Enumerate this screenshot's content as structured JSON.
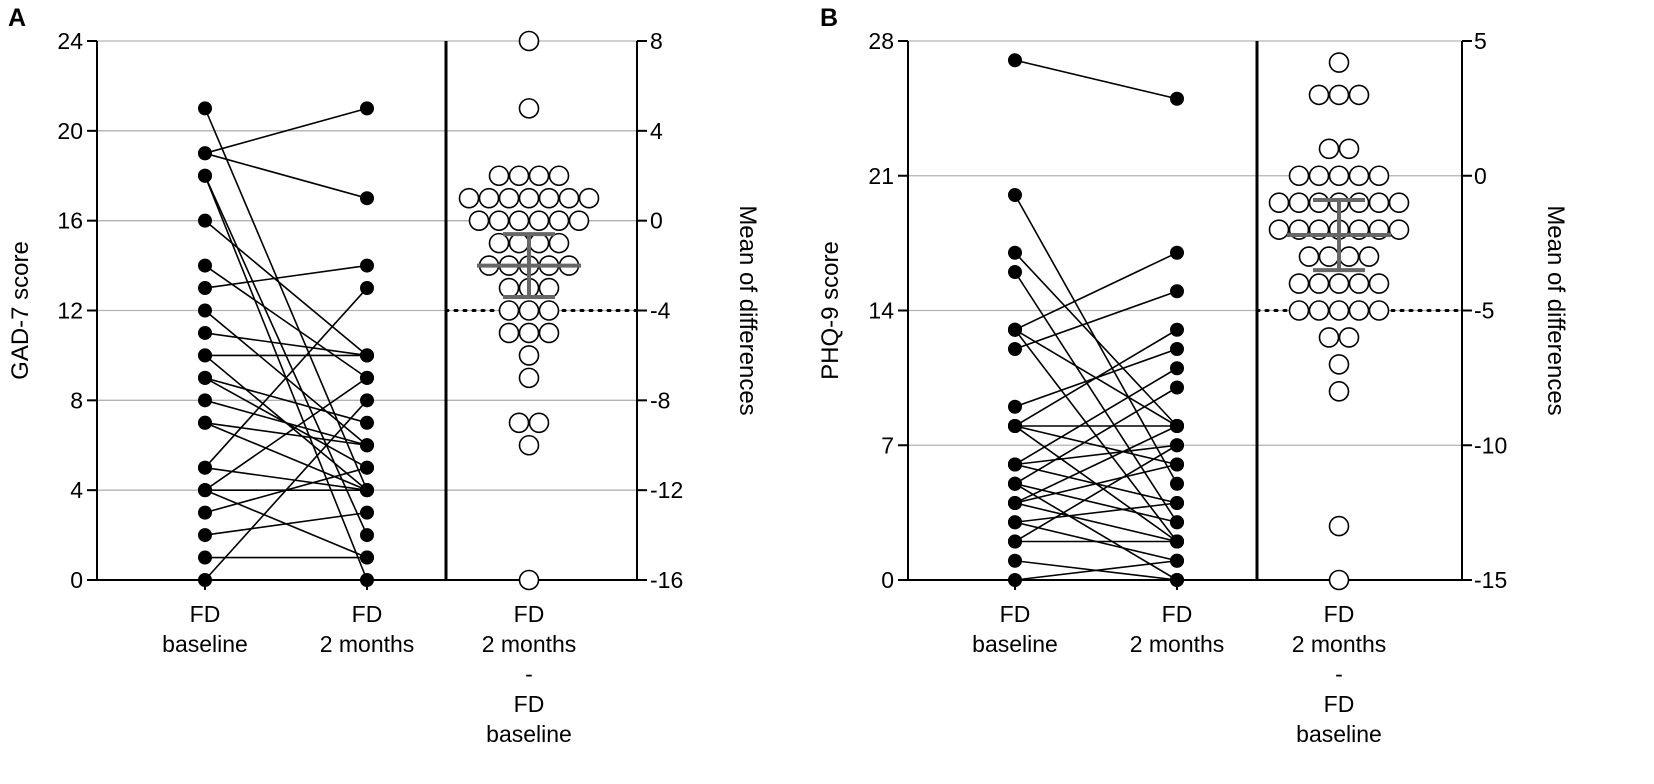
{
  "chart_data": [
    {
      "type": "estimation-plot",
      "panel_label": "A",
      "ylabel": "GAD-7 score",
      "y2label": "Mean of differences",
      "ylim": [
        0,
        24
      ],
      "yticks": [
        "0",
        "4",
        "8",
        "12",
        "16",
        "20",
        "24"
      ],
      "yticks_values": [
        0,
        4,
        8,
        12,
        16,
        20,
        24
      ],
      "y2lim": [
        -16,
        8
      ],
      "y2ticks": [
        "-16",
        "-12",
        "-8",
        "-4",
        "0",
        "4",
        "8"
      ],
      "y2ticks_values": [
        -16,
        -12,
        -8,
        -4,
        0,
        4,
        8
      ],
      "reference_line_y2": -4,
      "categories": [
        [
          "FD",
          "baseline"
        ],
        [
          "FD",
          "2 months"
        ],
        [
          "FD",
          "2 months",
          "-",
          "FD",
          "baseline"
        ]
      ],
      "pairs": [
        [
          21,
          4
        ],
        [
          19,
          21
        ],
        [
          19,
          17
        ],
        [
          18,
          0
        ],
        [
          18,
          2
        ],
        [
          16,
          10
        ],
        [
          14,
          9
        ],
        [
          13,
          14
        ],
        [
          12,
          6
        ],
        [
          11,
          10
        ],
        [
          10,
          10
        ],
        [
          10,
          4
        ],
        [
          9,
          7
        ],
        [
          9,
          5
        ],
        [
          8,
          6
        ],
        [
          7,
          6
        ],
        [
          7,
          4
        ],
        [
          5,
          4
        ],
        [
          5,
          13
        ],
        [
          4,
          4
        ],
        [
          4,
          1
        ],
        [
          4,
          9
        ],
        [
          3,
          5
        ],
        [
          2,
          3
        ],
        [
          1,
          1
        ],
        [
          0,
          8
        ]
      ],
      "differences": [
        8,
        5,
        2,
        2,
        2,
        2,
        1,
        1,
        1,
        1,
        1,
        1,
        1,
        0,
        0,
        0,
        0,
        0,
        0,
        -1,
        -1,
        -1,
        -1,
        -2,
        -2,
        -2,
        -2,
        -2,
        -3,
        -3,
        -3,
        -4,
        -4,
        -4,
        -5,
        -5,
        -5,
        -6,
        -7,
        -9,
        -9,
        -10,
        -16
      ],
      "mean_difference": -2,
      "ci": [
        -3.4,
        -0.6
      ]
    },
    {
      "type": "estimation-plot",
      "panel_label": "B",
      "ylabel": "PHQ-9 score",
      "y2label": "Mean of differences",
      "ylim": [
        0,
        28
      ],
      "yticks": [
        "0",
        "7",
        "14",
        "21",
        "28"
      ],
      "yticks_values": [
        0,
        7,
        14,
        21,
        28
      ],
      "y2lim": [
        -15,
        5
      ],
      "y2ticks": [
        "-15",
        "-10",
        "-5",
        "0",
        "5"
      ],
      "y2ticks_values": [
        -15,
        -10,
        -5,
        0,
        5
      ],
      "reference_line_y2": -5,
      "categories": [
        [
          "FD",
          "baseline"
        ],
        [
          "FD",
          "2 months"
        ],
        [
          "FD",
          "2 months",
          "-",
          "FD",
          "baseline"
        ]
      ],
      "pairs": [
        [
          27,
          25
        ],
        [
          20,
          5
        ],
        [
          17,
          8
        ],
        [
          16,
          3
        ],
        [
          13,
          17
        ],
        [
          13,
          8
        ],
        [
          13,
          2
        ],
        [
          12,
          15
        ],
        [
          9,
          12
        ],
        [
          8,
          13
        ],
        [
          8,
          8
        ],
        [
          8,
          6
        ],
        [
          8,
          2
        ],
        [
          6,
          11
        ],
        [
          6,
          7
        ],
        [
          6,
          4
        ],
        [
          5,
          10
        ],
        [
          5,
          3
        ],
        [
          5,
          0
        ],
        [
          4,
          8
        ],
        [
          4,
          2
        ],
        [
          4,
          6
        ],
        [
          3,
          4
        ],
        [
          3,
          1
        ],
        [
          2,
          2
        ],
        [
          2,
          7
        ],
        [
          1,
          0
        ],
        [
          0,
          1
        ]
      ],
      "differences": [
        4.2,
        3.0,
        3.0,
        3.0,
        1.0,
        1.0,
        0,
        0,
        0,
        0,
        0,
        -1,
        -1,
        -1,
        -1,
        -1,
        -1,
        -1,
        -2,
        -2,
        -2,
        -2,
        -2,
        -2,
        -2,
        -3,
        -3,
        -3,
        -3,
        -4,
        -4,
        -4,
        -4,
        -4,
        -5,
        -5,
        -5,
        -5,
        -5,
        -6,
        -6,
        -7,
        -8,
        -13,
        -15
      ],
      "mean_difference": -2.2,
      "ci": [
        -3.5,
        -0.9
      ]
    }
  ]
}
